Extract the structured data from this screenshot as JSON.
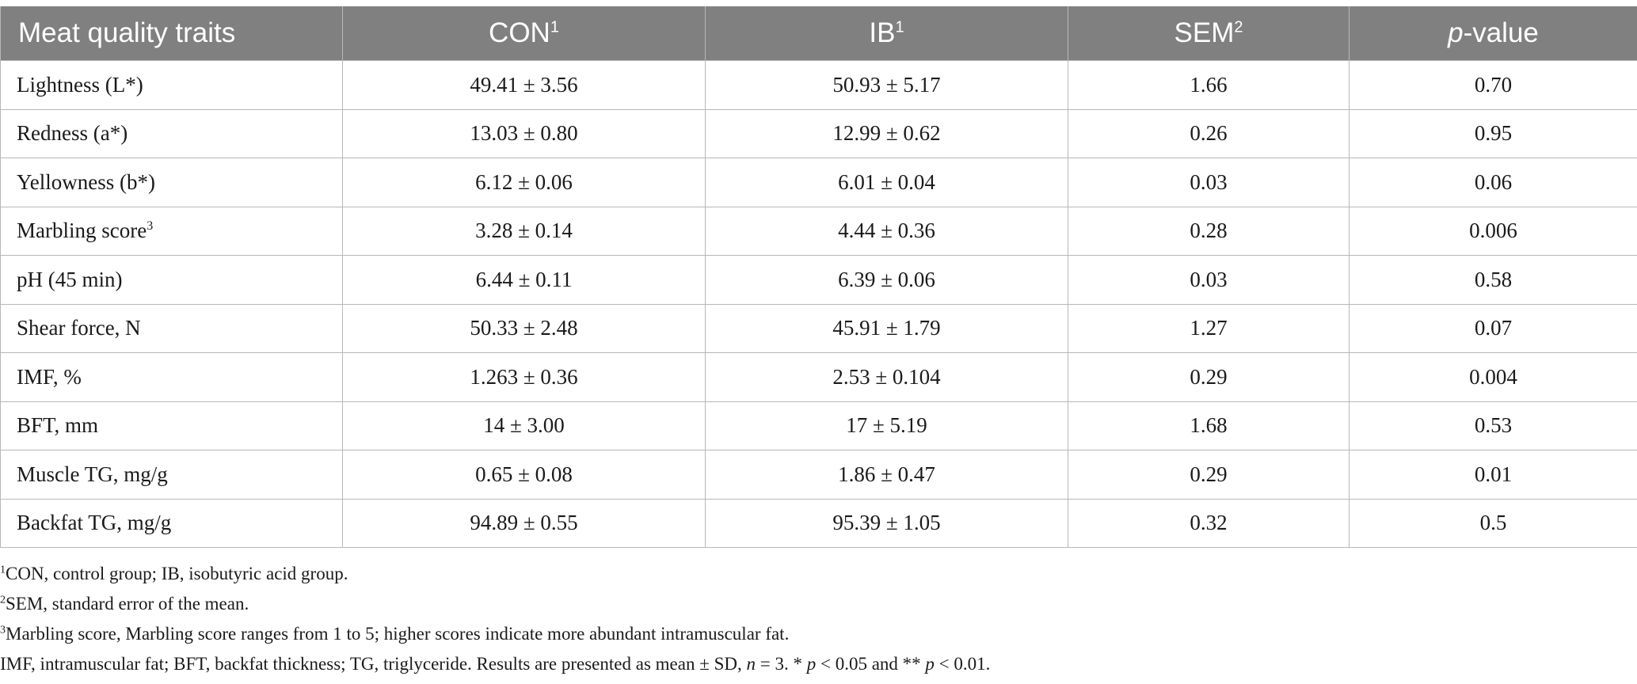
{
  "table": {
    "headers": [
      {
        "text": "Meat quality traits",
        "sup": ""
      },
      {
        "text": "CON",
        "sup": "1"
      },
      {
        "text": "IB",
        "sup": "1"
      },
      {
        "text": "SEM",
        "sup": "2"
      },
      {
        "text": "-value",
        "prefix_italic": "p",
        "sup": ""
      }
    ],
    "rows": [
      {
        "trait": "Lightness (L*)",
        "trait_sup": "",
        "con": "49.41 ± 3.56",
        "ib": "50.93 ± 5.17",
        "sem": "1.66",
        "p": "0.70"
      },
      {
        "trait": "Redness (a*)",
        "trait_sup": "",
        "con": "13.03 ± 0.80",
        "ib": "12.99 ± 0.62",
        "sem": "0.26",
        "p": "0.95"
      },
      {
        "trait": "Yellowness (b*)",
        "trait_sup": "",
        "con": "6.12 ± 0.06",
        "ib": "6.01 ± 0.04",
        "sem": "0.03",
        "p": "0.06"
      },
      {
        "trait": "Marbling score",
        "trait_sup": "3",
        "con": "3.28 ± 0.14",
        "ib": "4.44 ± 0.36",
        "sem": "0.28",
        "p": "0.006"
      },
      {
        "trait": "pH (45 min)",
        "trait_sup": "",
        "con": "6.44 ± 0.11",
        "ib": "6.39 ± 0.06",
        "sem": "0.03",
        "p": "0.58"
      },
      {
        "trait": "Shear force, N",
        "trait_sup": "",
        "con": "50.33 ± 2.48",
        "ib": "45.91 ± 1.79",
        "sem": "1.27",
        "p": "0.07"
      },
      {
        "trait": "IMF, %",
        "trait_sup": "",
        "con": "1.263 ± 0.36",
        "ib": "2.53 ± 0.104",
        "sem": "0.29",
        "p": "0.004"
      },
      {
        "trait": "BFT, mm",
        "trait_sup": "",
        "con": "14 ± 3.00",
        "ib": "17 ± 5.19",
        "sem": "1.68",
        "p": "0.53"
      },
      {
        "trait": "Muscle TG, mg/g",
        "trait_sup": "",
        "con": "0.65 ± 0.08",
        "ib": "1.86 ± 0.47",
        "sem": "0.29",
        "p": "0.01"
      },
      {
        "trait": "Backfat TG, mg/g",
        "trait_sup": "",
        "con": "94.89 ± 0.55",
        "ib": "95.39 ± 1.05",
        "sem": "0.32",
        "p": "0.5"
      }
    ]
  },
  "footnotes": {
    "fn1": {
      "sup": "1",
      "text": "CON, control group; IB, isobutyric acid group."
    },
    "fn2": {
      "sup": "2",
      "text": "SEM, standard error of the mean."
    },
    "fn3": {
      "sup": "3",
      "text": "Marbling score, Marbling score ranges from 1 to 5; higher scores indicate more abundant intramuscular fat."
    },
    "fn4": {
      "part1": "IMF, intramuscular fat; BFT, backfat thickness; TG, triglyceride. Results are presented as mean ± SD, ",
      "n_italic": "n",
      "part2": " = 3. * ",
      "p1_italic": "p",
      "part3": " < 0.05 and ** ",
      "p2_italic": "p",
      "part4": " < 0.01."
    }
  },
  "colors": {
    "header_bg": "#808080",
    "header_text": "#ffffff",
    "grid": "#b8b8b8"
  }
}
